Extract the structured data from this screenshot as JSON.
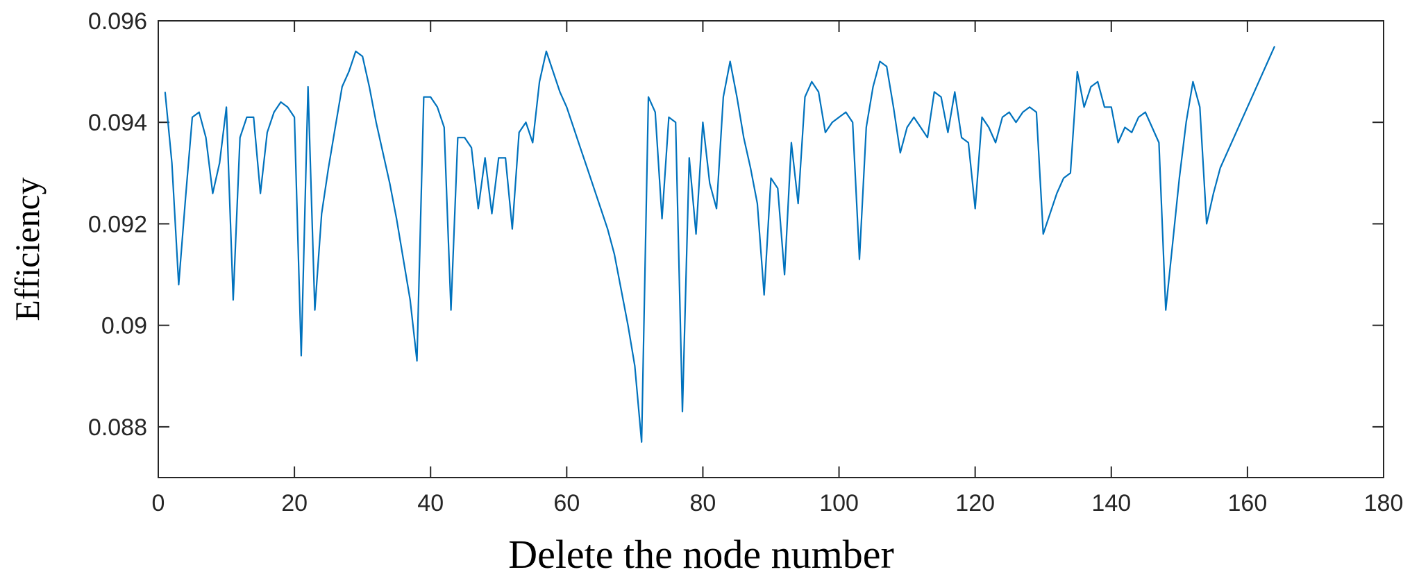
{
  "chart_data": {
    "type": "line",
    "title": "",
    "xlabel": "Delete the node number",
    "ylabel": "Efficiency",
    "xlim": [
      0,
      180
    ],
    "ylim": [
      0.087,
      0.096
    ],
    "xticks": [
      0,
      20,
      40,
      60,
      80,
      100,
      120,
      140,
      160,
      180
    ],
    "xtick_labels": [
      "0",
      "20",
      "40",
      "60",
      "80",
      "100",
      "120",
      "140",
      "160",
      "180"
    ],
    "yticks": [
      0.088,
      0.09,
      0.092,
      0.094,
      0.096
    ],
    "ytick_labels": [
      "0.088",
      "0.09",
      "0.092",
      "0.094",
      "0.096"
    ],
    "grid": false,
    "line_color": "#0072BD",
    "series": [
      {
        "x": [
          1,
          2,
          3,
          4,
          5,
          6,
          7,
          8,
          9,
          10,
          11,
          12,
          13,
          14,
          15,
          16,
          17,
          18,
          19,
          20,
          21,
          22,
          23,
          24,
          25,
          26,
          27,
          28,
          29,
          30,
          31,
          32,
          33,
          34,
          35,
          36,
          37,
          38,
          39,
          40,
          41,
          42,
          43,
          44,
          45,
          46,
          47,
          48,
          49,
          50,
          51,
          52,
          53,
          54,
          55,
          56,
          57,
          58,
          59,
          60,
          61,
          62,
          63,
          64,
          65,
          66,
          67,
          68,
          69,
          70,
          71,
          72,
          73,
          74,
          75,
          76,
          77,
          78,
          79,
          80,
          81,
          82,
          83,
          84,
          85,
          86,
          87,
          88,
          89,
          90,
          91,
          92,
          93,
          94,
          95,
          96,
          97,
          98,
          99,
          100,
          101,
          102,
          103,
          104,
          105,
          106,
          107,
          108,
          109,
          110,
          111,
          112,
          113,
          114,
          115,
          116,
          117,
          118,
          119,
          120,
          121,
          122,
          123,
          124,
          125,
          126,
          127,
          128,
          129,
          130,
          131,
          132,
          133,
          134,
          135,
          136,
          137,
          138,
          139,
          140,
          141,
          142,
          143,
          144,
          145,
          146,
          147,
          148,
          149,
          150,
          151,
          152,
          153,
          154,
          155,
          156,
          157,
          158,
          159,
          160,
          161,
          162,
          163,
          164
        ],
        "y": [
          0.0946,
          0.0932,
          0.0908,
          0.0925,
          0.0941,
          0.0942,
          0.0937,
          0.0926,
          0.0932,
          0.0943,
          0.0905,
          0.0937,
          0.0941,
          0.0941,
          0.0926,
          0.0938,
          0.0942,
          0.0944,
          0.0943,
          0.0941,
          0.0894,
          0.0947,
          0.0903,
          0.0922,
          0.0931,
          0.0939,
          0.0947,
          0.095,
          0.0954,
          0.0953,
          0.0947,
          0.094,
          0.0934,
          0.0928,
          0.0921,
          0.0913,
          0.0905,
          0.0893,
          0.0945,
          0.0945,
          0.0943,
          0.0939,
          0.0903,
          0.0937,
          0.0937,
          0.0935,
          0.0923,
          0.0933,
          0.0922,
          0.0933,
          0.0933,
          0.0919,
          0.0938,
          0.094,
          0.0936,
          0.0948,
          0.0954,
          0.095,
          0.0946,
          0.0943,
          0.0939,
          0.0935,
          0.0931,
          0.0927,
          0.0923,
          0.0919,
          0.0914,
          0.0907,
          0.09,
          0.0892,
          0.0877,
          0.0945,
          0.0942,
          0.0921,
          0.0941,
          0.094,
          0.0883,
          0.0933,
          0.0918,
          0.094,
          0.0928,
          0.0923,
          0.0945,
          0.0952,
          0.0945,
          0.0937,
          0.0931,
          0.0924,
          0.0906,
          0.0929,
          0.0927,
          0.091,
          0.0936,
          0.0924,
          0.0945,
          0.0948,
          0.0946,
          0.0938,
          0.094,
          0.0941,
          0.0942,
          0.094,
          0.0913,
          0.0939,
          0.0947,
          0.0952,
          0.0951,
          0.0943,
          0.0934,
          0.0939,
          0.0941,
          0.0939,
          0.0937,
          0.0946,
          0.0945,
          0.0938,
          0.0946,
          0.0937,
          0.0936,
          0.0923,
          0.0941,
          0.0939,
          0.0936,
          0.0941,
          0.0942,
          0.094,
          0.0942,
          0.0943,
          0.0942,
          0.0918,
          0.0922,
          0.0926,
          0.0929,
          0.093,
          0.095,
          0.0943,
          0.0947,
          0.0948,
          0.0943,
          0.0943,
          0.0936,
          0.0939,
          0.0938,
          0.0941,
          0.0942,
          0.0939,
          0.0936,
          0.0903,
          0.0916,
          0.0929,
          0.094,
          0.0948,
          0.0943,
          0.092,
          0.0926,
          0.0931,
          0.0934,
          0.0937,
          0.094,
          0.0943,
          0.0946,
          0.0949,
          0.0952,
          0.0955
        ]
      }
    ]
  }
}
